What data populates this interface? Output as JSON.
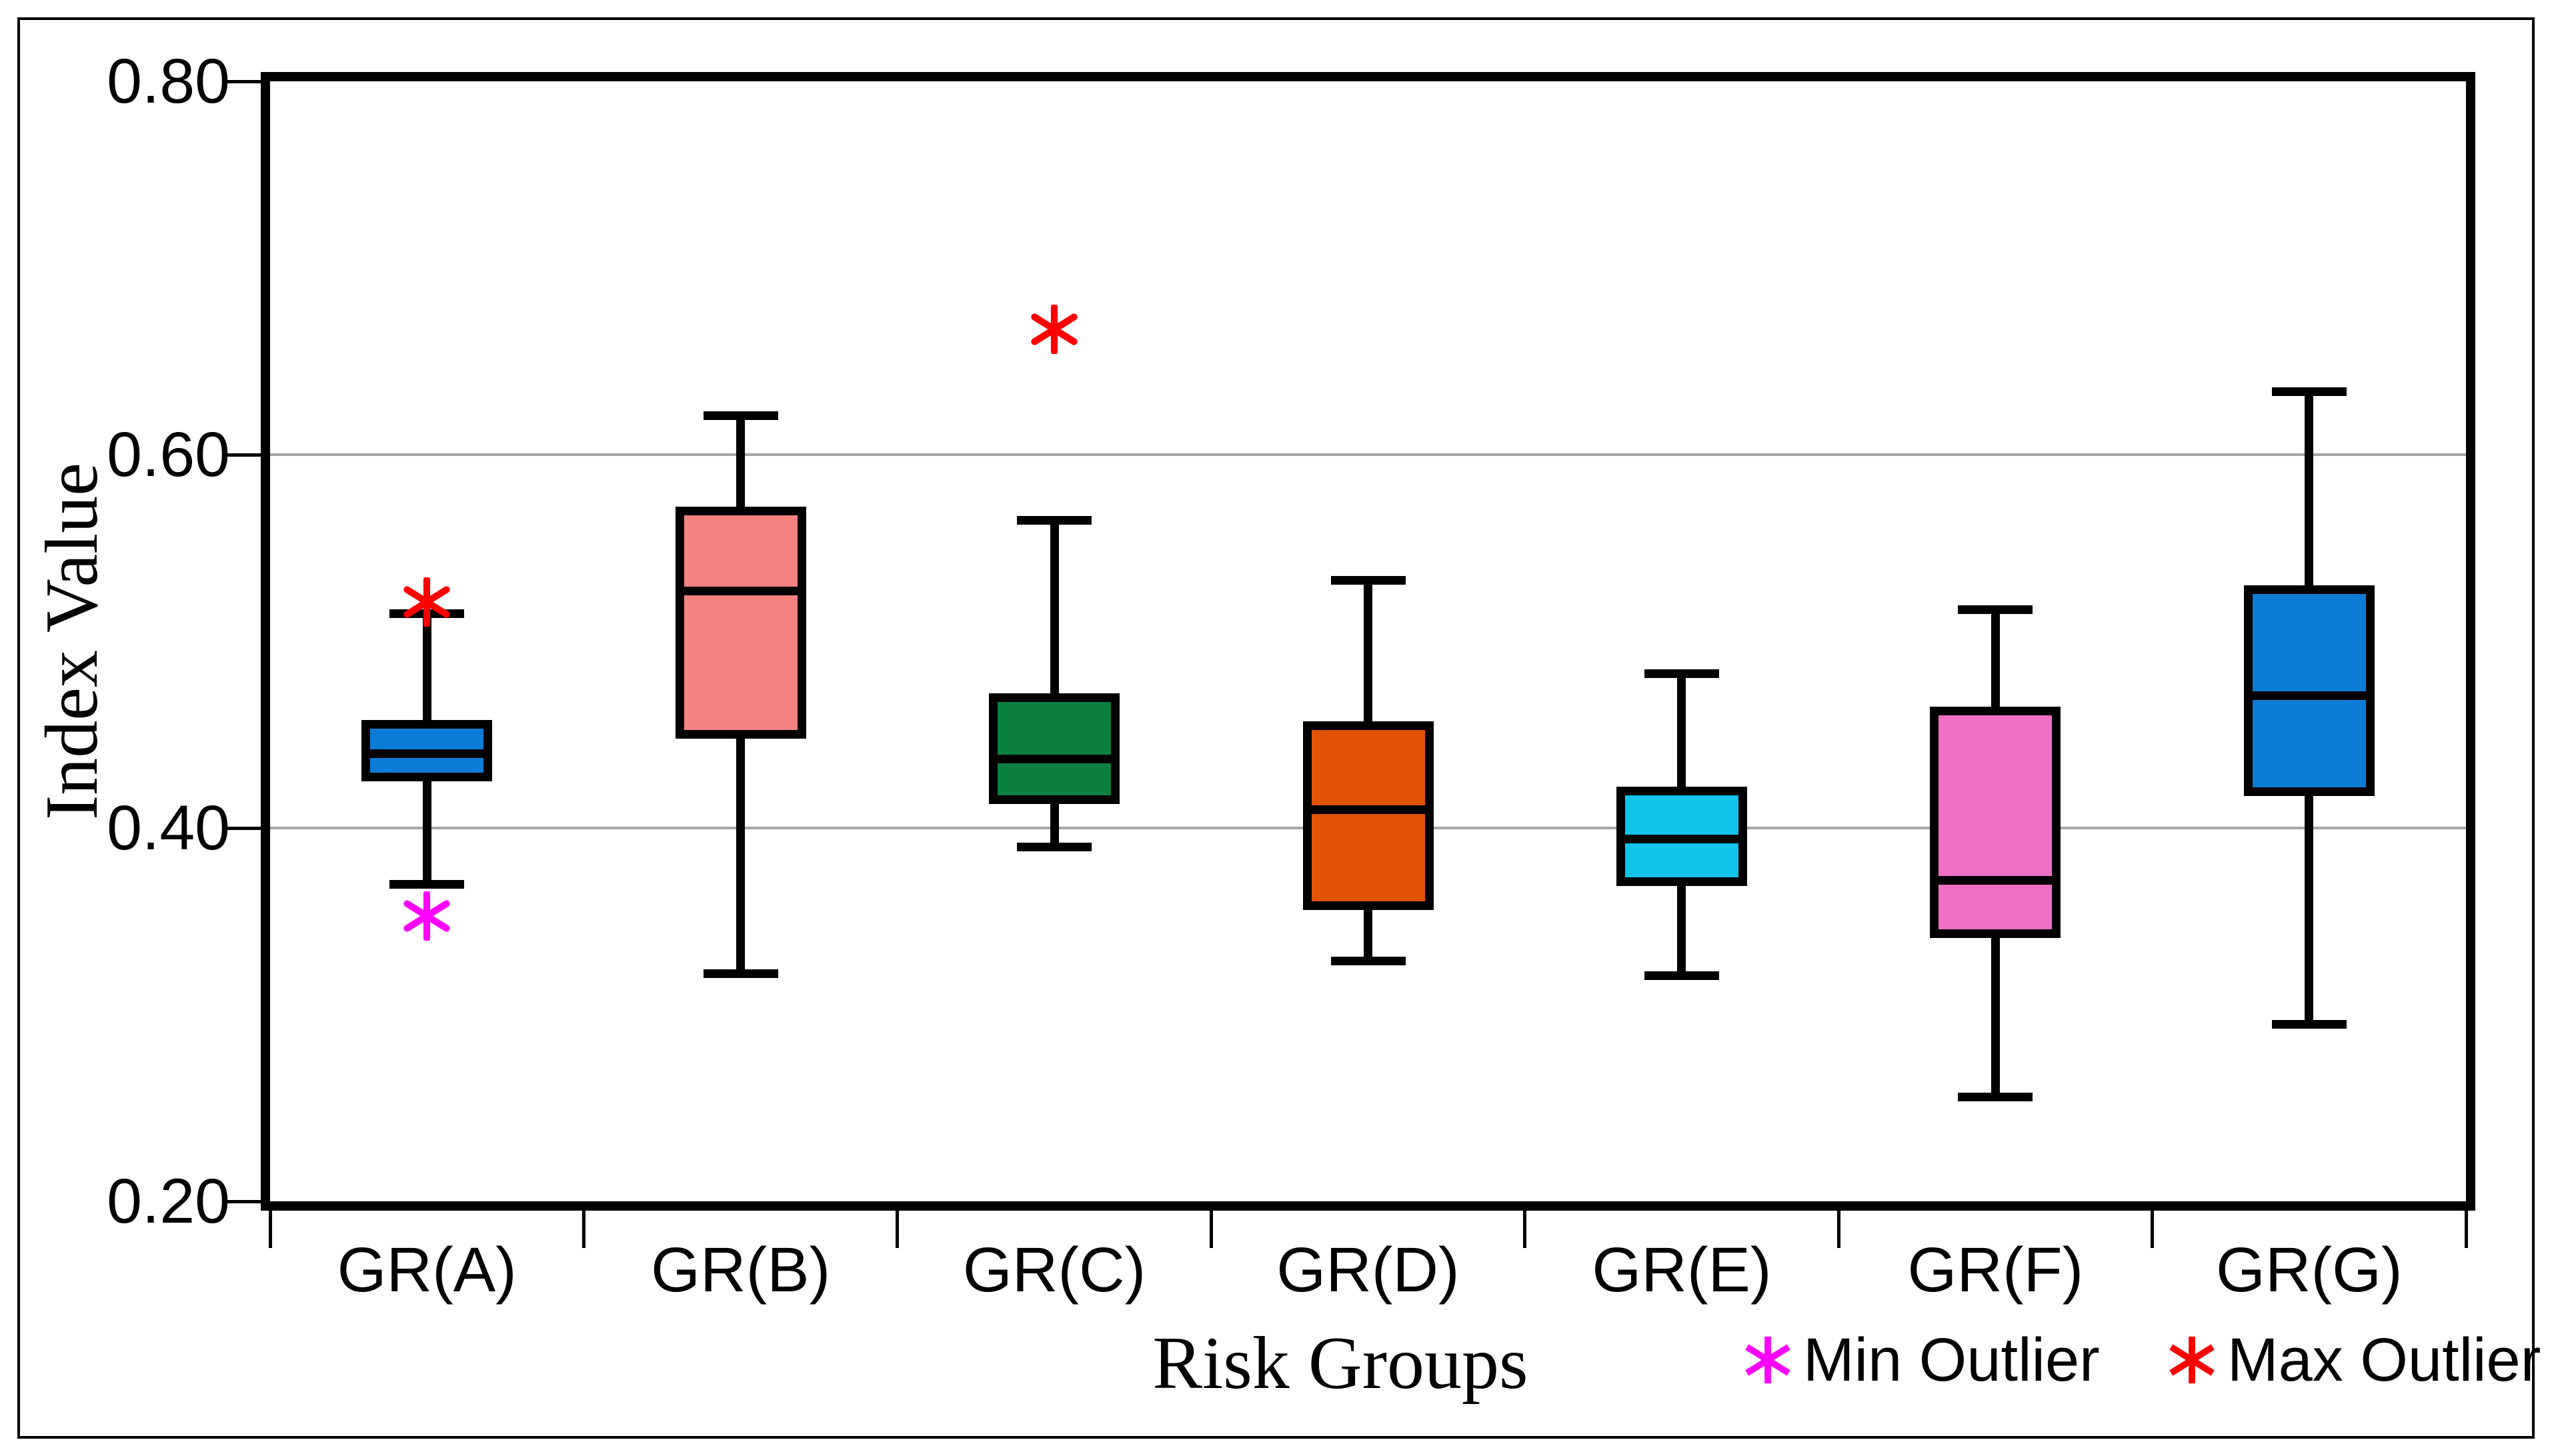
{
  "figure": {
    "background": "#ffffff",
    "border_color": "#000000",
    "axis_color": "#000000",
    "grid_color": "#a6a6a6"
  },
  "chart_data": {
    "type": "boxplot",
    "title": "",
    "xlabel": "Risk Groups",
    "ylabel": "Index Value",
    "ylim": [
      0.2,
      0.8
    ],
    "yticks": [
      {
        "value": 0.8,
        "label": "0.80"
      },
      {
        "value": 0.6,
        "label": "0.60"
      },
      {
        "value": 0.4,
        "label": "0.40"
      },
      {
        "value": 0.2,
        "label": "0.20"
      }
    ],
    "gridline_values": [
      0.6,
      0.4
    ],
    "grid_on": true,
    "categories": [
      "GR(A)",
      "GR(B)",
      "GR(C)",
      "GR(D)",
      "GR(E)",
      "GR(F)",
      "GR(G)"
    ],
    "series": [
      {
        "category": "GR(A)",
        "whisker_low": 0.37,
        "q1": 0.425,
        "median": 0.44,
        "q3": 0.458,
        "whisker_high": 0.515,
        "min_outliers": [
          0.353
        ],
        "max_outliers": [
          0.521
        ],
        "fill_color": "#0d7cd6"
      },
      {
        "category": "GR(B)",
        "whisker_low": 0.322,
        "q1": 0.448,
        "median": 0.527,
        "q3": 0.572,
        "whisker_high": 0.621,
        "min_outliers": [],
        "max_outliers": [],
        "fill_color": "#f48280"
      },
      {
        "category": "GR(C)",
        "whisker_low": 0.39,
        "q1": 0.413,
        "median": 0.437,
        "q3": 0.472,
        "whisker_high": 0.565,
        "min_outliers": [],
        "max_outliers": [
          0.667
        ],
        "fill_color": "#0c8040"
      },
      {
        "category": "GR(D)",
        "whisker_low": 0.329,
        "q1": 0.356,
        "median": 0.41,
        "q3": 0.457,
        "whisker_high": 0.533,
        "min_outliers": [],
        "max_outliers": [],
        "fill_color": "#e25308"
      },
      {
        "category": "GR(E)",
        "whisker_low": 0.321,
        "q1": 0.369,
        "median": 0.394,
        "q3": 0.422,
        "whisker_high": 0.483,
        "min_outliers": [],
        "max_outliers": [],
        "fill_color": "#10c4e8"
      },
      {
        "category": "GR(F)",
        "whisker_low": 0.256,
        "q1": 0.341,
        "median": 0.372,
        "q3": 0.465,
        "whisker_high": 0.517,
        "min_outliers": [],
        "max_outliers": [],
        "fill_color": "#ef6ec6"
      },
      {
        "category": "GR(G)",
        "whisker_low": 0.295,
        "q1": 0.417,
        "median": 0.471,
        "q3": 0.53,
        "whisker_high": 0.634,
        "min_outliers": [],
        "max_outliers": [],
        "fill_color": "#0d7cd6"
      }
    ],
    "legend": [
      {
        "label": "Min Outlier",
        "marker": "asterisk",
        "color": "#ff00ff"
      },
      {
        "label": "Max Outlier",
        "marker": "asterisk",
        "color": "#ff0000"
      }
    ],
    "legend_position": "bottom-right"
  }
}
